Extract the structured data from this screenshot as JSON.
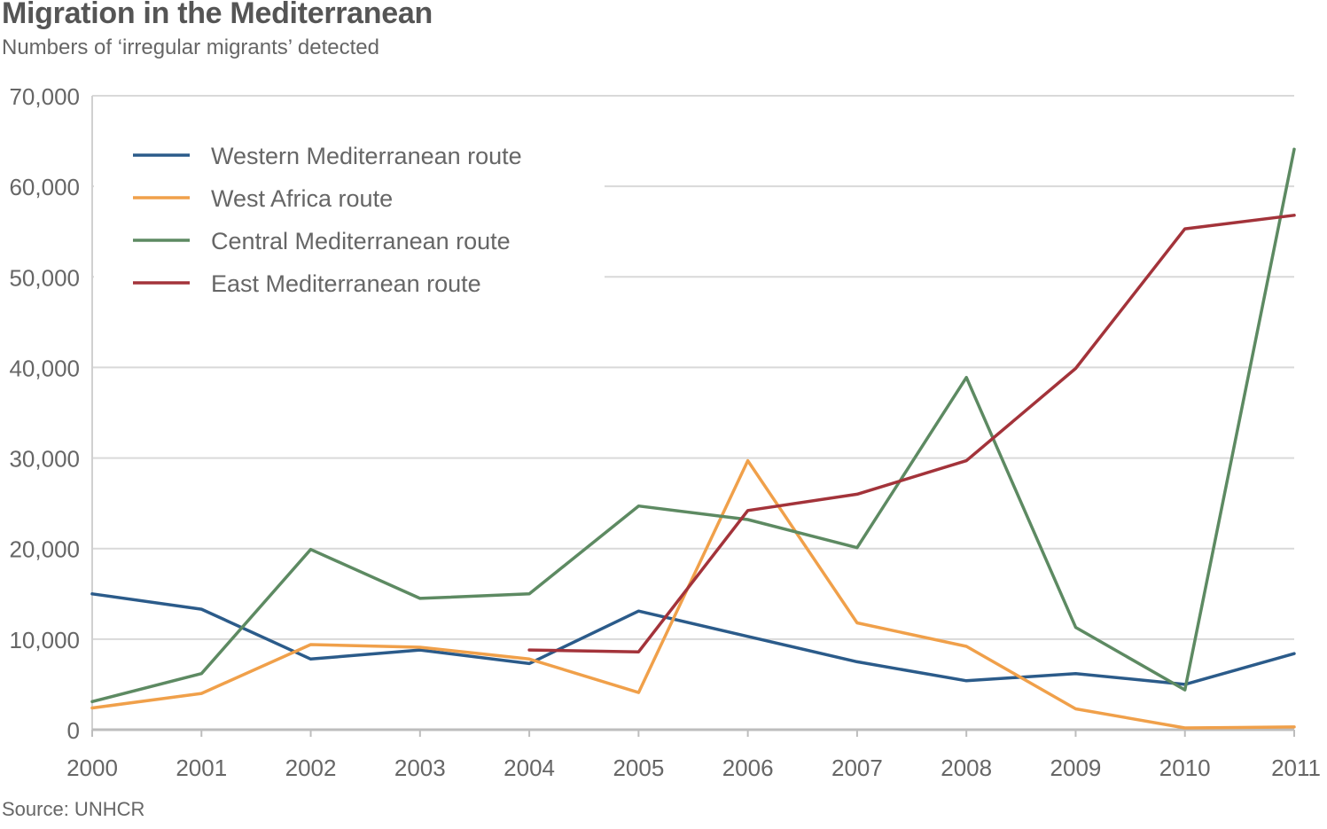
{
  "chart_data": {
    "type": "line",
    "title": "Migration in the Mediterranean",
    "subtitle": "Numbers of ‘irregular migrants’ detected",
    "source": "Source: UNHCR",
    "x": [
      2000,
      2001,
      2002,
      2003,
      2004,
      2005,
      2006,
      2007,
      2008,
      2009,
      2010,
      2011
    ],
    "x_tick_labels": [
      "2000",
      "2001",
      "2002",
      "2003",
      "2004",
      "2005",
      "2006",
      "2007",
      "2008",
      "2009",
      "2010",
      "2011"
    ],
    "y_ticks": [
      0,
      10000,
      20000,
      30000,
      40000,
      50000,
      60000,
      70000
    ],
    "y_tick_labels": [
      "0",
      "10,000",
      "20,000",
      "30,000",
      "40,000",
      "50,000",
      "60,000",
      "70,000"
    ],
    "ylim": [
      0,
      70000
    ],
    "grid": true,
    "legend_position": "top-left",
    "series": [
      {
        "name": "Western Mediterranean route",
        "color": "#2b5b8a",
        "values": [
          15000,
          13300,
          7800,
          8800,
          7300,
          13100,
          10300,
          7500,
          5400,
          6200,
          5000,
          8400
        ]
      },
      {
        "name": "West Africa route",
        "color": "#f0a04a",
        "values": [
          2400,
          4000,
          9400,
          9100,
          7800,
          4100,
          29700,
          11800,
          9200,
          2300,
          200,
          300
        ]
      },
      {
        "name": "Central Mediterranean route",
        "color": "#5d8a62",
        "values": [
          3100,
          6200,
          19900,
          14500,
          15000,
          24700,
          23200,
          20100,
          38900,
          11300,
          4400,
          64100
        ]
      },
      {
        "name": "East Mediterranean route",
        "color": "#a3333a",
        "values": [
          null,
          null,
          null,
          null,
          8800,
          8600,
          24200,
          26000,
          29700,
          39900,
          55300,
          56800
        ]
      }
    ]
  }
}
